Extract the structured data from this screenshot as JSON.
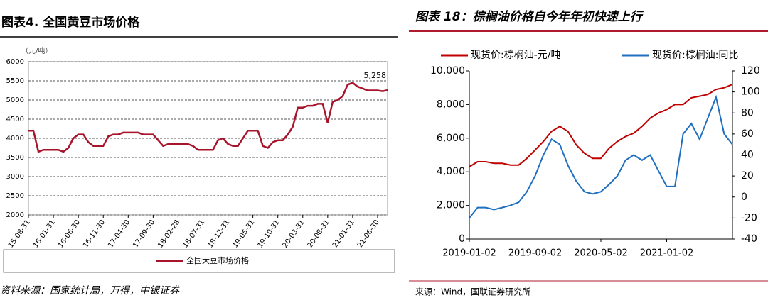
{
  "chart_data": [
    {
      "type": "line",
      "title": "图表4. 全国黄豆市场价格",
      "unit": "（元/吨）",
      "source": "资料来源：国家统计局，万得，中银证券",
      "categories": [
        "15-08-31",
        null,
        null,
        null,
        null,
        "16-01-31",
        null,
        null,
        null,
        null,
        "16-06-30",
        null,
        null,
        null,
        null,
        "16-11-30",
        null,
        null,
        null,
        null,
        "17-04-30",
        null,
        null,
        null,
        null,
        "17-09-30",
        null,
        null,
        null,
        null,
        "18-02-28",
        null,
        null,
        null,
        null,
        "18-07-31",
        null,
        null,
        null,
        null,
        "18-12-31",
        null,
        null,
        null,
        null,
        "19-05-31",
        null,
        null,
        null,
        null,
        "19-10-31",
        null,
        null,
        null,
        null,
        "20-03-31",
        null,
        null,
        null,
        null,
        "20-08-31",
        null,
        null,
        null,
        null,
        "21-01-31",
        null,
        null,
        null,
        null,
        "21-06-30",
        null,
        null
      ],
      "series": [
        {
          "name": "全国大豆市场价格",
          "color": "#a8142b",
          "values": [
            4200,
            4200,
            3650,
            3700,
            3700,
            3700,
            3700,
            3650,
            3750,
            4000,
            4100,
            4100,
            3900,
            3800,
            3800,
            3800,
            4050,
            4100,
            4100,
            4150,
            4150,
            4150,
            4150,
            4100,
            4100,
            4100,
            3950,
            3800,
            3850,
            3850,
            3850,
            3850,
            3850,
            3800,
            3700,
            3700,
            3700,
            3700,
            3950,
            4000,
            3850,
            3800,
            3800,
            4000,
            4200,
            4200,
            4200,
            3800,
            3750,
            3900,
            3950,
            3950,
            4100,
            4300,
            4800,
            4800,
            4850,
            4850,
            4900,
            4900,
            4400,
            4950,
            5000,
            5100,
            5400,
            5450,
            5350,
            5300,
            5250,
            5250,
            5250,
            5230,
            5258
          ],
          "value_labels": [
            null,
            null,
            null,
            null,
            null,
            null,
            null,
            null,
            null,
            null,
            null,
            null,
            null,
            null,
            null,
            null,
            null,
            null,
            null,
            null,
            null,
            null,
            null,
            null,
            null,
            null,
            null,
            null,
            null,
            null,
            null,
            null,
            null,
            null,
            null,
            null,
            null,
            null,
            null,
            null,
            null,
            null,
            null,
            null,
            null,
            null,
            null,
            null,
            null,
            null,
            null,
            null,
            null,
            null,
            null,
            null,
            null,
            null,
            null,
            null,
            null,
            null,
            null,
            null,
            null,
            null,
            null,
            null,
            null,
            null,
            null,
            null,
            "5,258"
          ]
        }
      ],
      "ylim": [
        2000,
        6000
      ],
      "yticks": [
        2000,
        2500,
        3000,
        3500,
        4000,
        4500,
        5000,
        5500,
        6000
      ],
      "grid": true,
      "legend": "bottom"
    },
    {
      "type": "line",
      "title": "图表 18：棕榈油价格自今年年初快速上行",
      "source": "来源：Wind，国联证券研究所",
      "categories": [
        "2019-01-02",
        null,
        null,
        null,
        null,
        null,
        null,
        null,
        "2019-09-02",
        null,
        null,
        null,
        null,
        null,
        null,
        null,
        "2020-05-02",
        null,
        null,
        null,
        null,
        null,
        null,
        null,
        "2021-01-02",
        null,
        null,
        null,
        null,
        null,
        null,
        null,
        null
      ],
      "series": [
        {
          "name": "现货价:棕榈油-元/吨",
          "color": "#c00000",
          "values": [
            4300,
            4600,
            4600,
            4500,
            4500,
            4400,
            4400,
            4800,
            5300,
            5800,
            6400,
            6700,
            6400,
            5600,
            5100,
            4800,
            4800,
            5400,
            5800,
            6100,
            6300,
            6700,
            7200,
            7500,
            7700,
            8000,
            8000,
            8400,
            8500,
            8600,
            8900,
            9000,
            9200
          ]
        },
        {
          "name": "现货价:棕榈油:同比",
          "color": "#1f6fc0",
          "axis": "y2",
          "values": [
            -20,
            -10,
            -10,
            -12,
            -10,
            -8,
            -5,
            5,
            20,
            40,
            55,
            50,
            30,
            15,
            5,
            3,
            5,
            12,
            20,
            35,
            40,
            35,
            40,
            25,
            10,
            10,
            60,
            70,
            55,
            75,
            95,
            60,
            50
          ]
        }
      ],
      "ylim": [
        0,
        10000
      ],
      "yticks": [
        0,
        {
          "value": 2000,
          "label": "2,000"
        },
        {
          "value": 4000,
          "label": "4,000"
        },
        {
          "value": 6000,
          "label": "6,000"
        },
        {
          "value": 8000,
          "label": "8,000"
        },
        {
          "value": 10000,
          "label": "10,000"
        }
      ],
      "y2lim": [
        -40,
        120
      ],
      "y2ticks": [
        -40,
        -20,
        0,
        20,
        40,
        60,
        80,
        100,
        120
      ],
      "grid": false,
      "legend": "top"
    }
  ]
}
